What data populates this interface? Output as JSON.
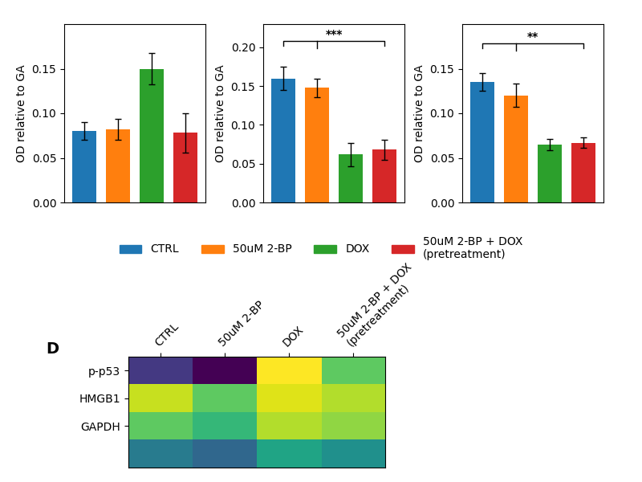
{
  "chart_data": [
    {
      "type": "bar",
      "categories": [
        "CTRL",
        "50uM 2-BP",
        "DOX",
        "50uM 2-BP + DOX\n(pretreatment)"
      ],
      "values": [
        0.08,
        0.082,
        0.15,
        0.078
      ],
      "errors": [
        0.01,
        0.012,
        0.018,
        0.022
      ],
      "ylabel": "OD relative to GA",
      "ylim": [
        0,
        0.2
      ],
      "yticks": [
        {
          "value": 0.0,
          "label": "0.00"
        },
        {
          "value": 0.05,
          "label": "0.05"
        },
        {
          "value": 0.1,
          "label": "0.10"
        },
        {
          "value": 0.15,
          "label": "0.15"
        }
      ],
      "tick_labels": "y",
      "legend": "center"
    },
    {
      "type": "bar",
      "categories": [
        "CTRL",
        "50uM 2-BP",
        "DOX",
        "50uM 2-BP + DOX\n(pretreatment)"
      ],
      "values": [
        0.16,
        0.148,
        0.062,
        0.068
      ],
      "errors": [
        0.015,
        0.012,
        0.015,
        0.013
      ],
      "ylabel": "OD relative to GA",
      "ylim": [
        0,
        0.23
      ],
      "yticks": [
        {
          "value": 0.0,
          "label": "0.00"
        },
        {
          "value": 0.05,
          "label": "0.05"
        },
        {
          "value": 0.1,
          "label": "0.10"
        },
        {
          "value": 0.15,
          "label": "0.15"
        },
        {
          "value": 0.2,
          "label": "0.20"
        }
      ],
      "tick_labels": "y",
      "annotations": [
        {
          "type": "bracket",
          "from": "CTRL",
          "to": "50uM 2-BP + DOX\n(pretreatment)",
          "notch": "50uM 2-BP",
          "y": 0.208,
          "label": "***"
        }
      ]
    },
    {
      "type": "bar",
      "categories": [
        "CTRL",
        "50uM 2-BP",
        "DOX",
        "50uM 2-BP + DOX\n(pretreatment)"
      ],
      "values": [
        0.135,
        0.12,
        0.065,
        0.067
      ],
      "errors": [
        0.01,
        0.013,
        0.006,
        0.006
      ],
      "ylabel": "OD relative to GA",
      "ylim": [
        0,
        0.2
      ],
      "yticks": [
        {
          "value": 0.0,
          "label": "0.00"
        },
        {
          "value": 0.05,
          "label": "0.05"
        },
        {
          "value": 0.1,
          "label": "0.10"
        },
        {
          "value": 0.15,
          "label": "0.15"
        }
      ],
      "tick_labels": "y",
      "annotations": [
        {
          "type": "bracket",
          "from": "CTRL",
          "to": "50uM 2-BP + DOX\n(pretreatment)",
          "notch": "50uM 2-BP",
          "y": 0.178,
          "label": "**"
        }
      ]
    },
    {
      "type": "heatmap",
      "title": "D",
      "categories": [
        "CTRL",
        "50uM 2-BP",
        "DOX",
        "50uM 2-BP + DOX\n(pretreatment)"
      ],
      "rows": [
        "p-p53",
        "HMGB1",
        "GAPDH",
        null
      ],
      "cells": [
        [
          0.45,
          0.35,
          0.95,
          0.8
        ],
        [
          0.9,
          0.8,
          0.92,
          0.88
        ],
        [
          0.8,
          0.75,
          0.88,
          0.85
        ],
        [
          0.6,
          0.55,
          0.7,
          0.65
        ]
      ]
    }
  ]
}
